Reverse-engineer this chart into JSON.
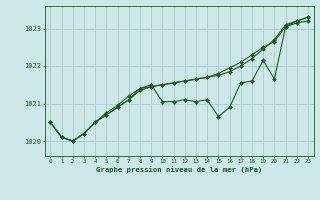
{
  "title": "Graphe pression niveau de la mer (hPa)",
  "bg_color": "#cce8e8",
  "grid_color": "#aacccc",
  "line_color": "#1a5c1a",
  "text_color": "#1a5c1a",
  "xlim": [
    -0.5,
    23.5
  ],
  "ylim": [
    1019.6,
    1023.6
  ],
  "yticks": [
    1020,
    1021,
    1022,
    1023
  ],
  "xticks": [
    0,
    1,
    2,
    3,
    4,
    5,
    6,
    7,
    8,
    9,
    10,
    11,
    12,
    13,
    14,
    15,
    16,
    17,
    18,
    19,
    20,
    21,
    22,
    23
  ],
  "series": [
    [
      1020.5,
      1020.1,
      1020.0,
      1020.2,
      1020.5,
      1020.75,
      1020.95,
      1021.2,
      1021.4,
      1021.45,
      1021.5,
      1021.55,
      1021.6,
      1021.65,
      1021.7,
      1021.8,
      1021.95,
      1022.1,
      1022.3,
      1022.5,
      1022.65,
      1023.05,
      1023.2,
      1023.3
    ],
    [
      1020.5,
      1020.1,
      1020.0,
      1020.2,
      1020.5,
      1020.7,
      1020.9,
      1021.1,
      1021.35,
      1021.45,
      1021.5,
      1021.55,
      1021.6,
      1021.65,
      1021.7,
      1021.75,
      1021.85,
      1022.0,
      1022.2,
      1022.45,
      1022.7,
      1023.1,
      1023.2,
      1023.3
    ],
    [
      1020.5,
      1020.1,
      1020.0,
      1020.2,
      1020.5,
      1020.7,
      1020.9,
      1021.1,
      1021.4,
      1021.5,
      1021.05,
      1021.05,
      1021.1,
      1021.05,
      1021.1,
      1020.65,
      1020.9,
      1021.55,
      1021.6,
      1022.15,
      1021.65,
      1023.05,
      1023.15,
      1023.2
    ]
  ]
}
